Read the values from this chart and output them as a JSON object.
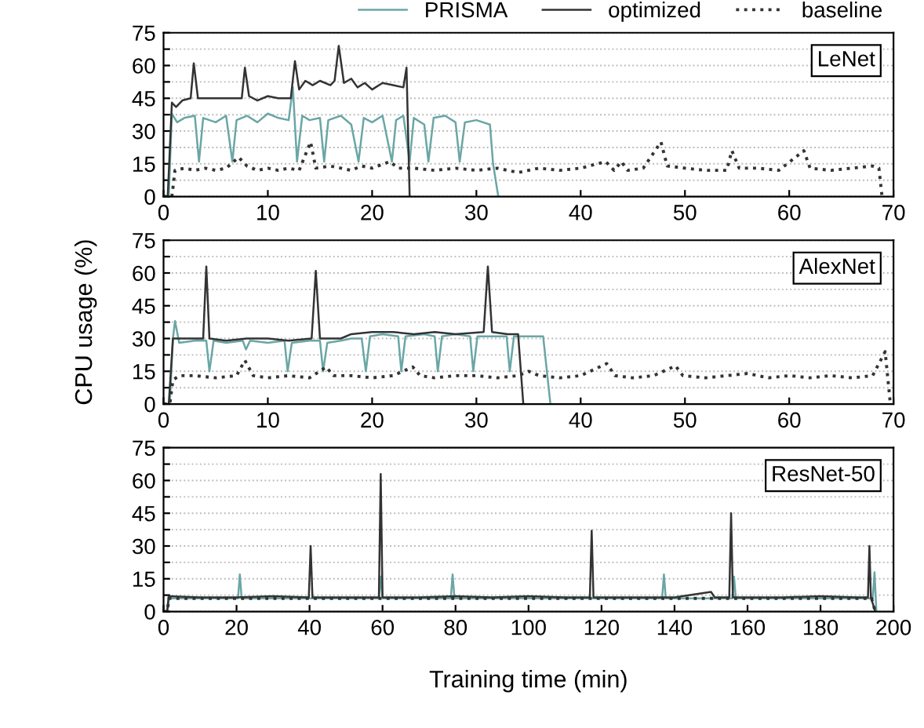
{
  "chart_data": [
    {
      "type": "line",
      "annotations": [
        "LeNet"
      ],
      "xlim": [
        0,
        70
      ],
      "xticks": [
        0,
        10,
        20,
        30,
        40,
        50,
        60,
        70
      ],
      "ylim": [
        0,
        75
      ],
      "yticks": [
        0,
        {
          "value": 7.5,
          "label": null
        },
        15,
        {
          "value": 22.5,
          "label": null
        },
        30,
        {
          "value": 37.5,
          "label": null
        },
        45,
        {
          "value": 52.5,
          "label": null
        },
        60,
        {
          "value": 67.5,
          "label": null
        },
        75
      ],
      "grid": "y",
      "legend": "top",
      "series": [
        {
          "name": "PRISMA",
          "color": "#6aa6a6",
          "line_style": "solid",
          "x": [
            0,
            0.5,
            0.8,
            1.3,
            2,
            3,
            3.4,
            3.8,
            5,
            6,
            6.6,
            7,
            8,
            9,
            10,
            11,
            12,
            12.4,
            12.8,
            13.3,
            14,
            15,
            15.4,
            15.8,
            17,
            18,
            18.7,
            19.2,
            20,
            21,
            21.9,
            22.3,
            23,
            23.6,
            24,
            25,
            25.4,
            25.9,
            27,
            28,
            28.4,
            28.9,
            30,
            31.3,
            31.6,
            32.1
          ],
          "values": [
            0,
            0,
            38,
            34,
            36,
            37,
            16,
            36,
            34,
            37,
            16,
            35,
            37,
            34,
            38,
            36,
            35,
            50,
            16,
            37,
            35,
            36,
            16,
            35,
            37,
            33,
            16,
            36,
            34,
            37,
            16,
            35,
            37,
            16,
            36,
            33,
            16,
            36,
            37,
            34,
            16,
            34,
            35,
            33,
            15,
            0
          ]
        },
        {
          "name": "optimized",
          "color": "#333333",
          "line_style": "solid",
          "x": [
            0,
            0.4,
            0.8,
            1.2,
            1.8,
            2.6,
            2.9,
            3.3,
            5,
            7,
            7.5,
            7.8,
            8.2,
            9,
            10,
            11,
            12.2,
            12.6,
            13,
            13.6,
            14.3,
            15,
            16,
            16.4,
            16.8,
            17.3,
            18,
            18.6,
            19.3,
            20,
            21,
            22,
            23,
            23.3,
            23.6
          ],
          "values": [
            0,
            0,
            43,
            41,
            44,
            45,
            61,
            45,
            45,
            45,
            45,
            59,
            46,
            44,
            46,
            45,
            45,
            62,
            49,
            53,
            51,
            53,
            51,
            53,
            69,
            52,
            54,
            50,
            52,
            49,
            52,
            51,
            50,
            59,
            0
          ]
        },
        {
          "name": "baseline",
          "color": "#333333",
          "line_style": "dotted",
          "x": [
            0,
            0.8,
            1.1,
            2,
            3,
            4,
            5,
            6,
            7.2,
            8,
            9,
            10,
            11,
            12,
            13,
            14.1,
            14.6,
            16,
            17,
            18,
            19,
            20,
            21.7,
            22.5,
            24,
            26,
            28,
            30,
            32,
            34,
            36,
            38,
            40,
            42.4,
            43.2,
            43.9,
            44.5,
            46,
            47.7,
            48.3,
            50,
            52,
            54,
            54.5,
            55.2,
            57,
            59,
            61.4,
            62,
            64,
            66,
            68,
            68.6,
            68.9
          ],
          "values": [
            0,
            0,
            12,
            13,
            12,
            13,
            12,
            13,
            18,
            14,
            12,
            13,
            12,
            13,
            12,
            25,
            13,
            14,
            13,
            12,
            14,
            13,
            16,
            13,
            13,
            12,
            13,
            12,
            13,
            11,
            13,
            12,
            13,
            16,
            12,
            16,
            12,
            13,
            25,
            14,
            13,
            12,
            12,
            21,
            13,
            13,
            12,
            21,
            13,
            12,
            13,
            14,
            13,
            0
          ]
        }
      ]
    },
    {
      "type": "line",
      "annotations": [
        "AlexNet"
      ],
      "ylabel": "CPU usage (%)",
      "xlim": [
        0,
        70
      ],
      "xticks": [
        0,
        10,
        20,
        30,
        40,
        50,
        60,
        70
      ],
      "ylim": [
        0,
        75
      ],
      "yticks": [
        0,
        {
          "value": 7.5,
          "label": null
        },
        15,
        {
          "value": 22.5,
          "label": null
        },
        30,
        {
          "value": 37.5,
          "label": null
        },
        45,
        {
          "value": 52.5,
          "label": null
        },
        60,
        {
          "value": 67.5,
          "label": null
        },
        75
      ],
      "grid": "y",
      "series": [
        {
          "color": "#6aa6a6",
          "line_style": "solid",
          "x": [
            0,
            0.6,
            0.9,
            1.1,
            1.5,
            3,
            4.1,
            4.4,
            4.8,
            6,
            7.6,
            7.9,
            8.3,
            10,
            11.6,
            11.9,
            12.3,
            14,
            15,
            15.3,
            15.7,
            17,
            18,
            19,
            19.4,
            19.8,
            21,
            22.5,
            22.8,
            23.2,
            25,
            26,
            26.3,
            26.7,
            28,
            29.4,
            29.7,
            30.1,
            32,
            32.9,
            33.2,
            33.6,
            35,
            36.4,
            37.1
          ],
          "values": [
            0,
            0,
            30,
            38,
            28,
            29,
            29,
            15,
            29,
            28,
            29,
            25,
            29,
            28,
            29,
            15,
            28,
            29,
            29,
            15,
            28,
            29,
            30,
            30,
            15,
            31,
            32,
            31,
            15,
            31,
            32,
            31,
            15,
            31,
            32,
            31,
            15,
            31,
            31,
            31,
            15,
            31,
            31,
            31,
            0
          ]
        },
        {
          "color": "#333333",
          "line_style": "solid",
          "x": [
            0,
            0.5,
            0.9,
            2,
            3.8,
            4.1,
            4.4,
            6,
            8,
            10,
            12,
            14.2,
            14.6,
            15,
            17,
            18,
            20,
            22,
            24,
            26,
            28,
            30.7,
            31.1,
            31.5,
            33,
            34,
            34.5
          ],
          "values": [
            0,
            0,
            30,
            30,
            30,
            63,
            30,
            29,
            30,
            30,
            29,
            30,
            61,
            30,
            30,
            32,
            33,
            33,
            32,
            33,
            32,
            33,
            63,
            33,
            32,
            32,
            0
          ]
        },
        {
          "color": "#333333",
          "line_style": "dotted",
          "x": [
            0,
            0.6,
            0.9,
            1.5,
            3,
            5,
            7,
            7.8,
            8.6,
            10,
            12,
            14,
            15.6,
            16.3,
            18,
            20,
            22,
            23.9,
            24.6,
            26,
            28,
            30,
            32,
            34,
            35,
            36,
            38,
            40,
            42.5,
            43.3,
            45,
            47,
            49.1,
            49.8,
            52,
            54,
            56,
            58,
            60,
            62,
            64,
            66,
            68,
            69.2,
            69.7
          ],
          "values": [
            0,
            0,
            11,
            13,
            13,
            12,
            13,
            20,
            13,
            12,
            13,
            12,
            17,
            13,
            13,
            12,
            13,
            17,
            13,
            12,
            13,
            13,
            12,
            13,
            15,
            13,
            12,
            13,
            18.5,
            13,
            12,
            13,
            17.5,
            13,
            12,
            13,
            14,
            12,
            13,
            12,
            13,
            12,
            13,
            24,
            0
          ]
        }
      ]
    },
    {
      "type": "line",
      "annotations": [
        "ResNet-50"
      ],
      "xlabel": "Training time (min)",
      "xlim": [
        0,
        200
      ],
      "xticks": [
        0,
        20,
        40,
        60,
        80,
        100,
        120,
        140,
        160,
        180,
        200
      ],
      "ylim": [
        0,
        75
      ],
      "yticks": [
        0,
        {
          "value": 7.5,
          "label": null
        },
        15,
        {
          "value": 22.5,
          "label": null
        },
        30,
        {
          "value": 37.5,
          "label": null
        },
        45,
        {
          "value": 52.5,
          "label": null
        },
        60,
        {
          "value": 67.5,
          "label": null
        },
        75
      ],
      "grid": "y",
      "series": [
        {
          "color": "#6aa6a6",
          "line_style": "solid",
          "x": [
            0,
            1,
            1.5,
            20.4,
            20.9,
            21.4,
            40,
            59,
            59.5,
            60,
            78.7,
            79.2,
            79.7,
            100,
            120,
            136.6,
            137.1,
            137.6,
            155.8,
            156.3,
            156.8,
            180,
            194.3,
            194.8,
            195.3
          ],
          "values": [
            0,
            0,
            6,
            6,
            17,
            6,
            6,
            6,
            16,
            6,
            6,
            17,
            6,
            6,
            6,
            6,
            17,
            6,
            6,
            16,
            6,
            6,
            6,
            18,
            0
          ]
        },
        {
          "color": "#333333",
          "line_style": "solid",
          "x": [
            0,
            1,
            1.4,
            10,
            20,
            30,
            39.8,
            40.3,
            40.8,
            50,
            59,
            59.5,
            60,
            70,
            80,
            90,
            100,
            110,
            116.8,
            117.3,
            117.8,
            130,
            140,
            150,
            151,
            155,
            155.5,
            156,
            170,
            180,
            190,
            193,
            193.4,
            193.8,
            195
          ],
          "values": [
            0,
            0,
            7,
            6.5,
            6.5,
            7,
            6.5,
            30,
            6.5,
            6.5,
            6.5,
            63,
            6.5,
            6.5,
            7,
            6.5,
            7,
            6.5,
            6.5,
            37,
            6.5,
            6.5,
            6.5,
            9,
            6.5,
            6.5,
            45,
            6.5,
            6.5,
            7,
            6.5,
            6.5,
            30,
            6.5,
            0
          ]
        },
        {
          "color": "#333333",
          "line_style": "dotted",
          "x": [
            0,
            1,
            1.5,
            50,
            100,
            150,
            194,
            195
          ],
          "values": [
            0,
            0,
            6,
            6,
            6,
            6,
            6,
            0
          ]
        }
      ]
    }
  ]
}
